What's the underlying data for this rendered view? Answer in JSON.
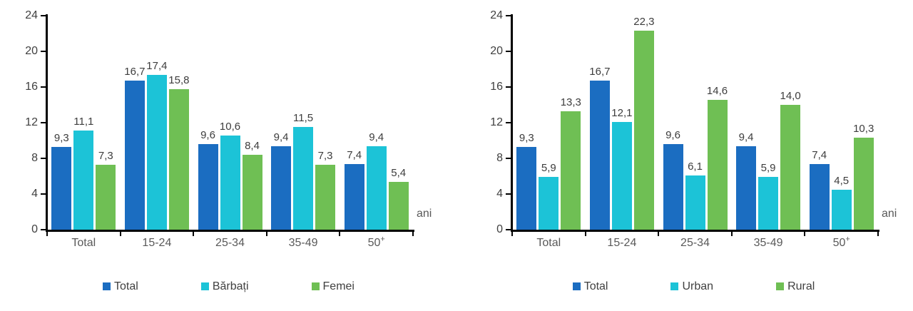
{
  "page": {
    "background": "#ffffff"
  },
  "chart_data": [
    {
      "type": "bar",
      "title": "",
      "categories": [
        "Total",
        "15-24",
        "25-34",
        "35-49",
        "50+"
      ],
      "series": [
        {
          "name": "Total",
          "color": "#1b6dc1",
          "values": [
            9.3,
            16.7,
            9.6,
            9.4,
            7.4
          ]
        },
        {
          "name": "Bărbați",
          "color": "#1cc3d7",
          "values": [
            11.1,
            17.4,
            10.6,
            11.5,
            9.4
          ]
        },
        {
          "name": "Femei",
          "color": "#6fbf54",
          "values": [
            7.3,
            15.8,
            8.4,
            7.3,
            5.4
          ]
        }
      ],
      "ylim": [
        0,
        24
      ],
      "yticks": [
        0,
        4,
        8,
        12,
        16,
        20,
        24
      ],
      "x_axis_unit_label": "ani",
      "decimal_separator": ",",
      "grid": false,
      "data_labels": true,
      "legend_position": "bottom"
    },
    {
      "type": "bar",
      "title": "",
      "categories": [
        "Total",
        "15-24",
        "25-34",
        "35-49",
        "50+"
      ],
      "series": [
        {
          "name": "Total",
          "color": "#1b6dc1",
          "values": [
            9.3,
            16.7,
            9.6,
            9.4,
            7.4
          ]
        },
        {
          "name": "Urban",
          "color": "#1cc3d7",
          "values": [
            5.9,
            12.1,
            6.1,
            5.9,
            4.5
          ]
        },
        {
          "name": "Rural",
          "color": "#6fbf54",
          "values": [
            13.3,
            22.3,
            14.6,
            14.0,
            10.3
          ]
        }
      ],
      "ylim": [
        0,
        24
      ],
      "yticks": [
        0,
        4,
        8,
        12,
        16,
        20,
        24
      ],
      "x_axis_unit_label": "ani",
      "decimal_separator": ",",
      "grid": false,
      "data_labels": true,
      "legend_position": "bottom"
    }
  ]
}
